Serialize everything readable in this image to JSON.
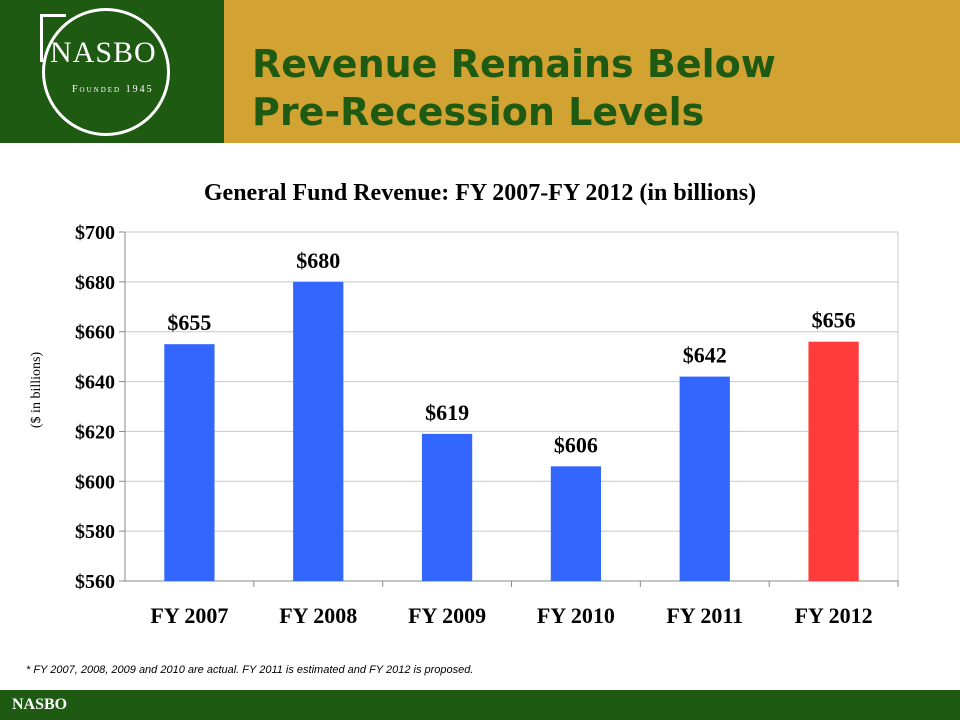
{
  "header": {
    "logo_text": "NASBO",
    "logo_subtitle": "Founded 1945",
    "title_line1": "Revenue Remains Below",
    "title_line2": "Pre-Recession Levels"
  },
  "chart_data": {
    "type": "bar",
    "title": "General Fund Revenue: FY 2007-FY 2012 (in billions)",
    "ylabel": "($ in billions)",
    "xlabel": "",
    "categories": [
      "FY 2007",
      "FY 2008",
      "FY 2009",
      "FY 2010",
      "FY 2011",
      "FY 2012"
    ],
    "values": [
      655,
      680,
      619,
      606,
      642,
      656
    ],
    "data_labels": [
      "$655",
      "$680",
      "$619",
      "$606",
      "$642",
      "$656"
    ],
    "bar_colors": [
      "#3366ff",
      "#3366ff",
      "#3366ff",
      "#3366ff",
      "#3366ff",
      "#ff3b3b"
    ],
    "ylim": [
      560,
      700
    ],
    "yticks": [
      560,
      580,
      600,
      620,
      640,
      660,
      680,
      700
    ],
    "ytick_labels": [
      "$560",
      "$580",
      "$600",
      "$620",
      "$640",
      "$660",
      "$680",
      "$700"
    ],
    "grid": true,
    "legend": "none"
  },
  "footnote": "* FY 2007, 2008, 2009 and 2010 are actual.  FY 2011 is estimated and FY 2012 is proposed.",
  "footer": {
    "label": "NASBO"
  },
  "colors": {
    "header_green": "#1e5a12",
    "header_gold": "#d2a233"
  }
}
